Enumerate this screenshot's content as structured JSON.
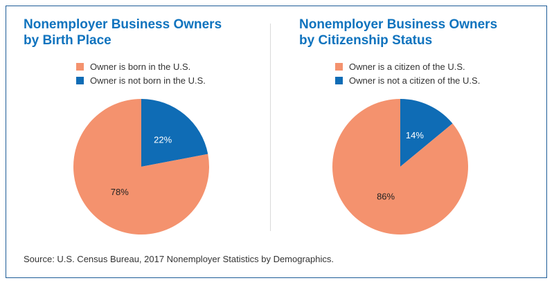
{
  "colors": {
    "frame": "#1c5b97",
    "title": "#0f73be",
    "salmon": "#f4926e",
    "blue": "#0f6cb5",
    "text": "#333333"
  },
  "panels": [
    {
      "title_line1": "Nonemployer Business Owners",
      "title_line2": "by Birth Place",
      "legend": [
        "Owner is born in the U.S.",
        "Owner is not born in the U.S."
      ]
    },
    {
      "title_line1": "Nonemployer Business Owners",
      "title_line2": "by Citizenship Status",
      "legend": [
        "Owner is a citizen of the U.S.",
        "Owner is not a citizen of the U.S."
      ]
    }
  ],
  "chart_data": [
    {
      "type": "pie",
      "title": "Nonemployer Business Owners by Birth Place",
      "categories": [
        "Owner is born in the U.S.",
        "Owner is not born in the U.S."
      ],
      "values": [
        78,
        22
      ],
      "labels": [
        "78%",
        "22%"
      ],
      "colors": [
        "#f4926e",
        "#0f6cb5"
      ]
    },
    {
      "type": "pie",
      "title": "Nonemployer Business Owners by Citizenship Status",
      "categories": [
        "Owner is a citizen of the U.S.",
        "Owner is not a citizen of the U.S."
      ],
      "values": [
        86,
        14
      ],
      "labels": [
        "86%",
        "14%"
      ],
      "colors": [
        "#f4926e",
        "#0f6cb5"
      ]
    }
  ],
  "source": "Source: U.S. Census Bureau, 2017 Nonemployer Statistics by Demographics."
}
